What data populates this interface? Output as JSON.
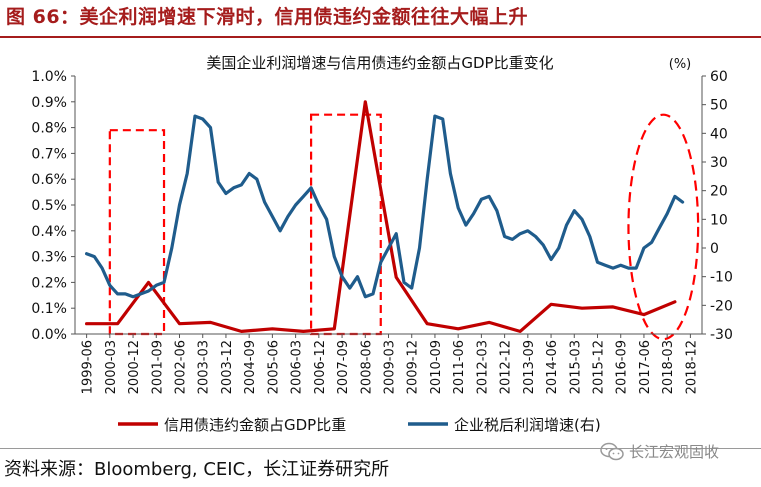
{
  "header": {
    "figure_title": "图 66：美企利润增速下滑时，信用债违约金额往往大幅上升"
  },
  "footer": {
    "source": "资料来源：Bloomberg, CEIC，长江证券研究所",
    "watermark": "长江宏观固收",
    "watermark_icon": "wechat-icon"
  },
  "chart_data": {
    "type": "line",
    "title": "美国企业利润增速与信用债违约金额占GDP比重变化",
    "left_axis": {
      "ylim": [
        0,
        0.01
      ],
      "ticks": [
        "0.0%",
        "0.1%",
        "0.2%",
        "0.3%",
        "0.4%",
        "0.5%",
        "0.6%",
        "0.7%",
        "0.8%",
        "0.9%",
        "1.0%"
      ]
    },
    "right_axis": {
      "unit_label": "(%)",
      "ylim": [
        -30,
        60
      ],
      "ticks": [
        "-30",
        "-20",
        "-10",
        "0",
        "10",
        "20",
        "30",
        "40",
        "50",
        "60"
      ]
    },
    "x_ticks": [
      "1999-06",
      "2000-03",
      "2000-12",
      "2001-09",
      "2002-06",
      "2003-03",
      "2003-12",
      "2004-09",
      "2005-06",
      "2006-03",
      "2006-12",
      "2007-09",
      "2008-06",
      "2009-03",
      "2009-12",
      "2010-09",
      "2011-06",
      "2012-03",
      "2012-12",
      "2013-09",
      "2014-06",
      "2015-03",
      "2015-12",
      "2016-09",
      "2017-06",
      "2018-03",
      "2018-12"
    ],
    "grid": false,
    "legend_position": "bottom",
    "series": [
      {
        "name": "信用债违约金额占GDP比重",
        "axis": "left",
        "color": "#c00000",
        "points": [
          [
            "1999-06",
            0.0004
          ],
          [
            "2000-06",
            0.0004
          ],
          [
            "2001-06",
            0.002
          ],
          [
            "2002-06",
            0.0004
          ],
          [
            "2003-06",
            0.00045
          ],
          [
            "2004-06",
            0.0001
          ],
          [
            "2005-06",
            0.0002
          ],
          [
            "2006-06",
            0.0001
          ],
          [
            "2007-06",
            0.0002
          ],
          [
            "2008-06",
            0.009
          ],
          [
            "2009-06",
            0.0022
          ],
          [
            "2010-06",
            0.0004
          ],
          [
            "2011-06",
            0.0002
          ],
          [
            "2012-06",
            0.00045
          ],
          [
            "2013-06",
            0.0001
          ],
          [
            "2014-06",
            0.00115
          ],
          [
            "2015-06",
            0.001
          ],
          [
            "2016-06",
            0.00105
          ],
          [
            "2017-06",
            0.00075
          ],
          [
            "2018-06",
            0.00125
          ]
        ]
      },
      {
        "name": "企业税后利润增速(右)",
        "axis": "right",
        "color": "#1f5c8c",
        "points": [
          [
            "1999-06",
            -2
          ],
          [
            "1999-09",
            -3
          ],
          [
            "1999-12",
            -7
          ],
          [
            "2000-03",
            -13
          ],
          [
            "2000-06",
            -16
          ],
          [
            "2000-09",
            -16
          ],
          [
            "2000-12",
            -17
          ],
          [
            "2001-03",
            -16
          ],
          [
            "2001-06",
            -15
          ],
          [
            "2001-09",
            -13
          ],
          [
            "2001-12",
            -12
          ],
          [
            "2002-03",
            0
          ],
          [
            "2002-06",
            15
          ],
          [
            "2002-09",
            26
          ],
          [
            "2002-12",
            46
          ],
          [
            "2003-03",
            45
          ],
          [
            "2003-06",
            42
          ],
          [
            "2003-09",
            23
          ],
          [
            "2003-12",
            19
          ],
          [
            "2004-03",
            21
          ],
          [
            "2004-06",
            22
          ],
          [
            "2004-09",
            26
          ],
          [
            "2004-12",
            24
          ],
          [
            "2005-03",
            16
          ],
          [
            "2005-06",
            11
          ],
          [
            "2005-09",
            6
          ],
          [
            "2005-12",
            11
          ],
          [
            "2006-03",
            15
          ],
          [
            "2006-06",
            18
          ],
          [
            "2006-09",
            21
          ],
          [
            "2006-12",
            15
          ],
          [
            "2007-03",
            10
          ],
          [
            "2007-06",
            -3
          ],
          [
            "2007-09",
            -10
          ],
          [
            "2007-12",
            -14
          ],
          [
            "2008-03",
            -10
          ],
          [
            "2008-06",
            -17
          ],
          [
            "2008-09",
            -16
          ],
          [
            "2008-12",
            -5
          ],
          [
            "2009-03",
            0
          ],
          [
            "2009-06",
            5
          ],
          [
            "2009-09",
            -12
          ],
          [
            "2009-12",
            -14
          ],
          [
            "2010-03",
            0
          ],
          [
            "2010-06",
            24
          ],
          [
            "2010-09",
            46
          ],
          [
            "2010-12",
            45
          ],
          [
            "2011-03",
            26
          ],
          [
            "2011-06",
            14
          ],
          [
            "2011-09",
            8
          ],
          [
            "2011-12",
            12
          ],
          [
            "2012-03",
            17
          ],
          [
            "2012-06",
            18
          ],
          [
            "2012-09",
            13
          ],
          [
            "2012-12",
            4
          ],
          [
            "2013-03",
            3
          ],
          [
            "2013-06",
            5
          ],
          [
            "2013-09",
            6
          ],
          [
            "2013-12",
            4
          ],
          [
            "2014-03",
            1
          ],
          [
            "2014-06",
            -4
          ],
          [
            "2014-09",
            0
          ],
          [
            "2014-12",
            8
          ],
          [
            "2015-03",
            13
          ],
          [
            "2015-06",
            10
          ],
          [
            "2015-09",
            4
          ],
          [
            "2015-12",
            -5
          ],
          [
            "2016-03",
            -6
          ],
          [
            "2016-06",
            -7
          ],
          [
            "2016-09",
            -6
          ],
          [
            "2016-12",
            -7
          ],
          [
            "2017-03",
            -7
          ],
          [
            "2017-06",
            0
          ],
          [
            "2017-09",
            2
          ],
          [
            "2017-12",
            7
          ],
          [
            "2018-03",
            12
          ],
          [
            "2018-06",
            18
          ],
          [
            "2018-09",
            16
          ]
        ]
      }
    ],
    "annotations": [
      {
        "shape": "rectangle",
        "style": "dashed",
        "color": "#ff0000",
        "x_range": [
          "2000-03",
          "2001-12"
        ],
        "y_range": [
          0,
          0.0079
        ]
      },
      {
        "shape": "rectangle",
        "style": "dashed",
        "color": "#ff0000",
        "x_range": [
          "2006-09",
          "2008-12"
        ],
        "y_range": [
          0,
          0.0085
        ]
      },
      {
        "shape": "ellipse",
        "style": "dashed",
        "color": "#ff0000",
        "x_range": [
          "2016-12",
          "2019-03"
        ],
        "y_range": [
          -0.0002,
          0.0085
        ]
      }
    ]
  }
}
